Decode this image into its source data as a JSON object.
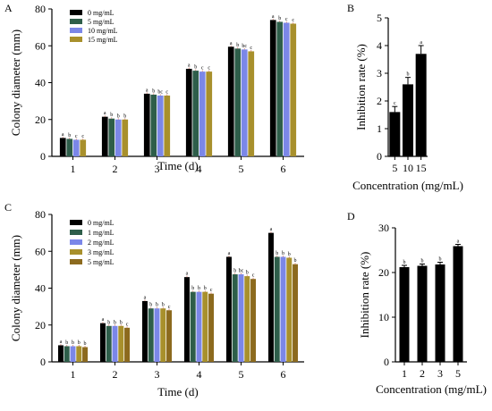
{
  "chart_data": [
    {
      "panel": "A",
      "type": "bar",
      "xlabel": "Time (d)",
      "ylabel": "Colony diameter (mm)",
      "ylim": [
        0,
        80
      ],
      "yticks": [
        0,
        20,
        40,
        60,
        80
      ],
      "categories": [
        "1",
        "2",
        "3",
        "4",
        "5",
        "6"
      ],
      "legend_position": "top-left",
      "series": [
        {
          "name": "0 mg/mL",
          "color": "#000000",
          "values": [
            10,
            21.5,
            34,
            47.5,
            59.5,
            74
          ],
          "labels": [
            "a",
            "a",
            "a",
            "a",
            "a",
            "a"
          ]
        },
        {
          "name": "5 mg/mL",
          "color": "#2e5e4a",
          "values": [
            9.5,
            20.5,
            33.5,
            46.5,
            58.5,
            73
          ],
          "labels": [
            "b",
            "b",
            "b",
            "b",
            "b",
            "b"
          ]
        },
        {
          "name": "10 mg/mL",
          "color": "#7b87e8",
          "values": [
            9,
            20,
            33,
            46,
            58,
            72.5
          ],
          "labels": [
            "c",
            "b",
            "bc",
            "c",
            "bc",
            "c"
          ]
        },
        {
          "name": "15 mg/mL",
          "color": "#a8902c",
          "values": [
            9,
            20,
            33,
            46,
            57,
            72
          ],
          "labels": [
            "c",
            "b",
            "c",
            "c",
            "c",
            "c"
          ]
        }
      ],
      "error_bar_color": "#e08070"
    },
    {
      "panel": "B",
      "type": "bar",
      "xlabel": "Concentration (mg/mL)",
      "ylabel": "Inhibition rate (%)",
      "ylim": [
        0,
        5
      ],
      "yticks": [
        0,
        1,
        2,
        3,
        4,
        5
      ],
      "categories": [
        "5",
        "10",
        "15"
      ],
      "values": [
        1.6,
        2.6,
        3.7
      ],
      "errors": [
        0.2,
        0.25,
        0.3
      ],
      "labels": [
        "c",
        "b",
        "a"
      ],
      "color": "#000000"
    },
    {
      "panel": "C",
      "type": "bar",
      "xlabel": "Time (d)",
      "ylabel": "Colony diameter (mm)",
      "ylim": [
        0,
        80
      ],
      "yticks": [
        0,
        20,
        40,
        60,
        80
      ],
      "categories": [
        "1",
        "2",
        "3",
        "4",
        "5",
        "6"
      ],
      "legend_position": "top-left",
      "series": [
        {
          "name": "0 mg/mL",
          "color": "#000000",
          "values": [
            9,
            21,
            33,
            46,
            57,
            70
          ],
          "labels": [
            "a",
            "a",
            "a",
            "a",
            "a",
            "a"
          ]
        },
        {
          "name": "1 mg/mL",
          "color": "#2e5e4a",
          "values": [
            8.5,
            19.5,
            29,
            38,
            47.5,
            57
          ],
          "labels": [
            "b",
            "b",
            "b",
            "b",
            "b",
            "b"
          ]
        },
        {
          "name": "2 mg/mL",
          "color": "#7b87e8",
          "values": [
            8.5,
            19.5,
            29,
            38,
            47.5,
            57
          ],
          "labels": [
            "b",
            "b",
            "b",
            "b",
            "bc",
            "b"
          ]
        },
        {
          "name": "3 mg/mL",
          "color": "#a8902c",
          "values": [
            8.5,
            19.5,
            29,
            38,
            46.5,
            56.5
          ],
          "labels": [
            "b",
            "b",
            "b",
            "b",
            "b",
            "b"
          ]
        },
        {
          "name": "5 mg/mL",
          "color": "#8c6a1e",
          "values": [
            8,
            18.5,
            28,
            37,
            45,
            53
          ],
          "labels": [
            "b",
            "c",
            "c",
            "c",
            "c",
            "b"
          ]
        }
      ],
      "error_bar_color": "#e08070"
    },
    {
      "panel": "D",
      "type": "bar",
      "xlabel": "Concentration (mg/mL)",
      "ylabel": "Inhibition rate (%)",
      "ylim": [
        0,
        30
      ],
      "yticks": [
        0,
        10,
        20,
        30
      ],
      "categories": [
        "1",
        "2",
        "3",
        "5"
      ],
      "values": [
        21.2,
        21.5,
        21.8,
        25.9
      ],
      "errors": [
        0.4,
        0.4,
        0.5,
        0.4
      ],
      "labels": [
        "b",
        "b",
        "b",
        "a"
      ],
      "color": "#000000"
    }
  ]
}
